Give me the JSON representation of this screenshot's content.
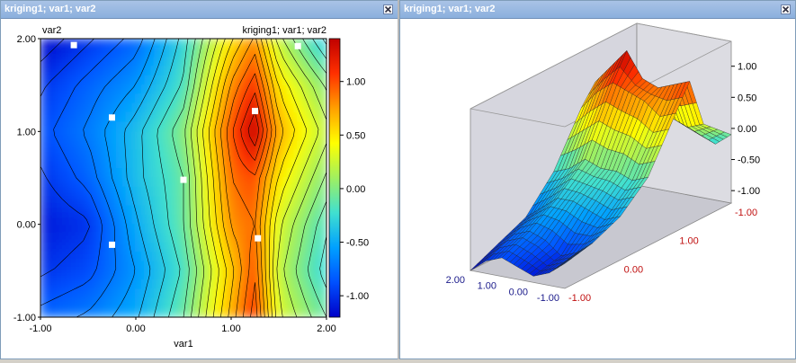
{
  "windows": {
    "left": {
      "title": "kriging1; var1; var2"
    },
    "right": {
      "title": "kriging1; var1; var2"
    }
  },
  "colors": {
    "titlebar": "#a9c3e6",
    "colormap": [
      "#0000c8",
      "#0050ff",
      "#00a0ff",
      "#40e0d0",
      "#a0f060",
      "#ffff00",
      "#ffa000",
      "#ff3000",
      "#c00000"
    ]
  },
  "icons": {
    "close": "close-x-icon"
  },
  "map2d": {
    "title": "kriging1; var1; var2",
    "ylabel": "var2",
    "xlabel": "var1",
    "xticks": [
      "-1.00",
      "0.00",
      "1.00",
      "2.00"
    ],
    "yticks": [
      "2.00",
      "1.00",
      "0.00",
      "-1.00"
    ],
    "colorbar_ticks": [
      "1.00",
      "0.50",
      "0.00",
      "-0.50",
      "-1.00"
    ]
  },
  "surface3d": {
    "zticks": [
      "1.00",
      "0.50",
      "0.00",
      "-0.50",
      "-1.00"
    ],
    "var2_ticks": [
      "2.00",
      "1.00",
      "0.00",
      "-1.00"
    ],
    "var1_ticks": [
      "-1.00",
      "1.00",
      "0.00",
      "-1.00"
    ]
  },
  "chart_data": {
    "type": "heatmap",
    "title": "kriging1; var1; var2",
    "xlabel": "var1",
    "ylabel": "var2",
    "xlim": [
      -1,
      2
    ],
    "ylim": [
      -1,
      2
    ],
    "zlim": [
      -1.2,
      1.4
    ],
    "x": [
      -1.0,
      -0.5,
      0.0,
      0.5,
      1.0,
      1.25,
      1.5,
      2.0
    ],
    "y": [
      2.0,
      1.5,
      1.0,
      0.5,
      0.0,
      -0.5,
      -1.0
    ],
    "z": [
      [
        -1.2,
        -1.0,
        -0.8,
        -0.3,
        0.5,
        0.8,
        0.2,
        -0.4
      ],
      [
        -1.0,
        -0.8,
        -0.6,
        -0.2,
        0.8,
        1.1,
        0.5,
        0.0
      ],
      [
        -0.9,
        -0.7,
        -0.4,
        0.0,
        1.0,
        1.4,
        0.7,
        0.2
      ],
      [
        -1.0,
        -0.8,
        -0.4,
        -0.1,
        0.9,
        1.0,
        0.5,
        0.0
      ],
      [
        -1.1,
        -1.0,
        -0.5,
        -0.1,
        0.8,
        0.9,
        0.3,
        -0.2
      ],
      [
        -1.0,
        -0.9,
        -0.6,
        -0.2,
        0.6,
        1.0,
        0.2,
        -0.3
      ],
      [
        -0.8,
        -0.7,
        -0.5,
        -0.1,
        0.7,
        1.1,
        0.3,
        -0.1
      ]
    ],
    "samples": [
      {
        "x": -0.65,
        "y": 1.93
      },
      {
        "x": 1.7,
        "y": 1.92
      },
      {
        "x": -0.25,
        "y": 1.15
      },
      {
        "x": 1.25,
        "y": 1.22
      },
      {
        "x": 0.5,
        "y": 0.48
      },
      {
        "x": -0.25,
        "y": -0.22
      },
      {
        "x": 1.28,
        "y": -0.15
      }
    ]
  }
}
